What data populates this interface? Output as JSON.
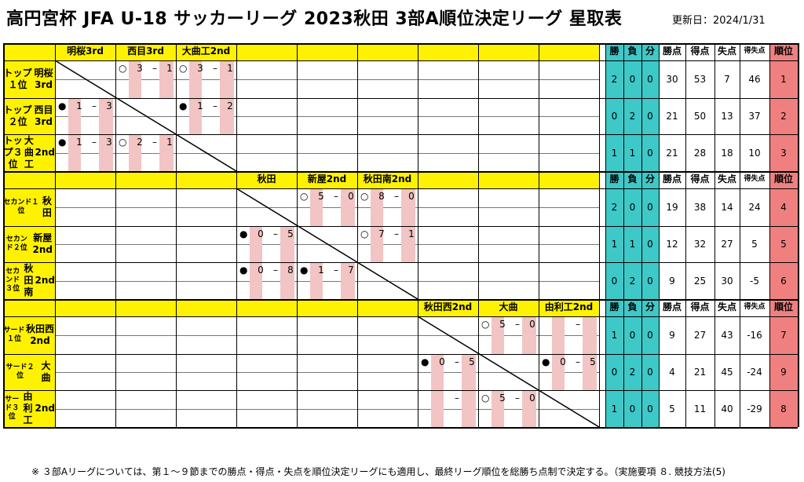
{
  "title": "高円宮杯 JFA U-18 サッカーリーグ 2023秋田 3部A順位決定リーグ 星取表",
  "updated": "更新日：2024/1/31",
  "stat_headers": [
    "勝",
    "負",
    "分",
    "勝点",
    "得点",
    "失点",
    "得失点",
    "順位"
  ],
  "groups": [
    {
      "columns": [
        "明桜3rd",
        "西目3rd",
        "大曲工2nd"
      ],
      "teams": [
        {
          "label": "トップ１位\n明桜3rd",
          "w": "2",
          "l": "0",
          "d": "0",
          "pts": "30",
          "gf": "53",
          "ga": "7",
          "gd": "46",
          "rank": "1"
        },
        {
          "label": "トップ２位\n西目3rd",
          "w": "0",
          "l": "2",
          "d": "0",
          "pts": "21",
          "gf": "50",
          "ga": "13",
          "gd": "37",
          "rank": "2"
        },
        {
          "label": "トップ３位\n大曲工\n2nd",
          "w": "1",
          "l": "1",
          "d": "0",
          "pts": "21",
          "gf": "28",
          "ga": "18",
          "gd": "10",
          "rank": "3"
        }
      ],
      "results": [
        {
          "r": 0,
          "c": 1,
          "mark": "○",
          "a": "3",
          "b": "1"
        },
        {
          "r": 0,
          "c": 2,
          "mark": "○",
          "a": "3",
          "b": "1"
        },
        {
          "r": 1,
          "c": 0,
          "mark": "●",
          "a": "1",
          "b": "3"
        },
        {
          "r": 1,
          "c": 2,
          "mark": "●",
          "a": "1",
          "b": "2"
        },
        {
          "r": 2,
          "c": 0,
          "mark": "●",
          "a": "1",
          "b": "3"
        },
        {
          "r": 2,
          "c": 1,
          "mark": "○",
          "a": "2",
          "b": "1"
        }
      ]
    },
    {
      "columns": [
        "秋田",
        "新屋2nd",
        "秋田南2nd"
      ],
      "teams": [
        {
          "label": "セカンド１位\n秋田",
          "w": "2",
          "l": "0",
          "d": "0",
          "pts": "19",
          "gf": "38",
          "ga": "14",
          "gd": "24",
          "rank": "4"
        },
        {
          "label": "セカンド２位\n新屋2nd",
          "w": "1",
          "l": "1",
          "d": "0",
          "pts": "12",
          "gf": "32",
          "ga": "27",
          "gd": "5",
          "rank": "5"
        },
        {
          "label": "セカンド３位\n秋田南\n2nd",
          "w": "0",
          "l": "2",
          "d": "0",
          "pts": "9",
          "gf": "25",
          "ga": "30",
          "gd": "-5",
          "rank": "6"
        }
      ],
      "results": [
        {
          "r": 0,
          "c": 1,
          "mark": "○",
          "a": "5",
          "b": "0"
        },
        {
          "r": 0,
          "c": 2,
          "mark": "○",
          "a": "8",
          "b": "0"
        },
        {
          "r": 1,
          "c": 0,
          "mark": "●",
          "a": "0",
          "b": "5"
        },
        {
          "r": 1,
          "c": 2,
          "mark": "○",
          "a": "7",
          "b": "1"
        },
        {
          "r": 2,
          "c": 0,
          "mark": "●",
          "a": "0",
          "b": "8"
        },
        {
          "r": 2,
          "c": 1,
          "mark": "●",
          "a": "1",
          "b": "7"
        }
      ]
    },
    {
      "columns": [
        "秋田西2nd",
        "大曲",
        "由利工2nd"
      ],
      "teams": [
        {
          "label": "サード１位\n秋田西2nd",
          "w": "1",
          "l": "0",
          "d": "0",
          "pts": "9",
          "gf": "27",
          "ga": "43",
          "gd": "-16",
          "rank": "7"
        },
        {
          "label": "サード２位\n大曲",
          "w": "0",
          "l": "2",
          "d": "0",
          "pts": "4",
          "gf": "21",
          "ga": "45",
          "gd": "-24",
          "rank": "9"
        },
        {
          "label": "サード３位\n由利工\n2nd",
          "w": "1",
          "l": "0",
          "d": "0",
          "pts": "5",
          "gf": "11",
          "ga": "40",
          "gd": "-29",
          "rank": "8"
        }
      ],
      "results": [
        {
          "r": 0,
          "c": 1,
          "mark": "○",
          "a": "5",
          "b": "0"
        },
        {
          "r": 0,
          "c": 2,
          "mark": "",
          "a": "",
          "b": ""
        },
        {
          "r": 1,
          "c": 0,
          "mark": "●",
          "a": "0",
          "b": "5"
        },
        {
          "r": 1,
          "c": 2,
          "mark": "●",
          "a": "0",
          "b": "5"
        },
        {
          "r": 2,
          "c": 0,
          "mark": "",
          "a": "",
          "b": ""
        },
        {
          "r": 2,
          "c": 1,
          "mark": "○",
          "a": "5",
          "b": "0"
        }
      ]
    }
  ],
  "footnote": "※ ３部Aリーグについては、第１〜９節までの勝点・得点・失点を順位決定リーグにも適用し、最終リーグ順位を総勝ち点制で決定する。（実施要項 ８. 競技方法(5)"
}
